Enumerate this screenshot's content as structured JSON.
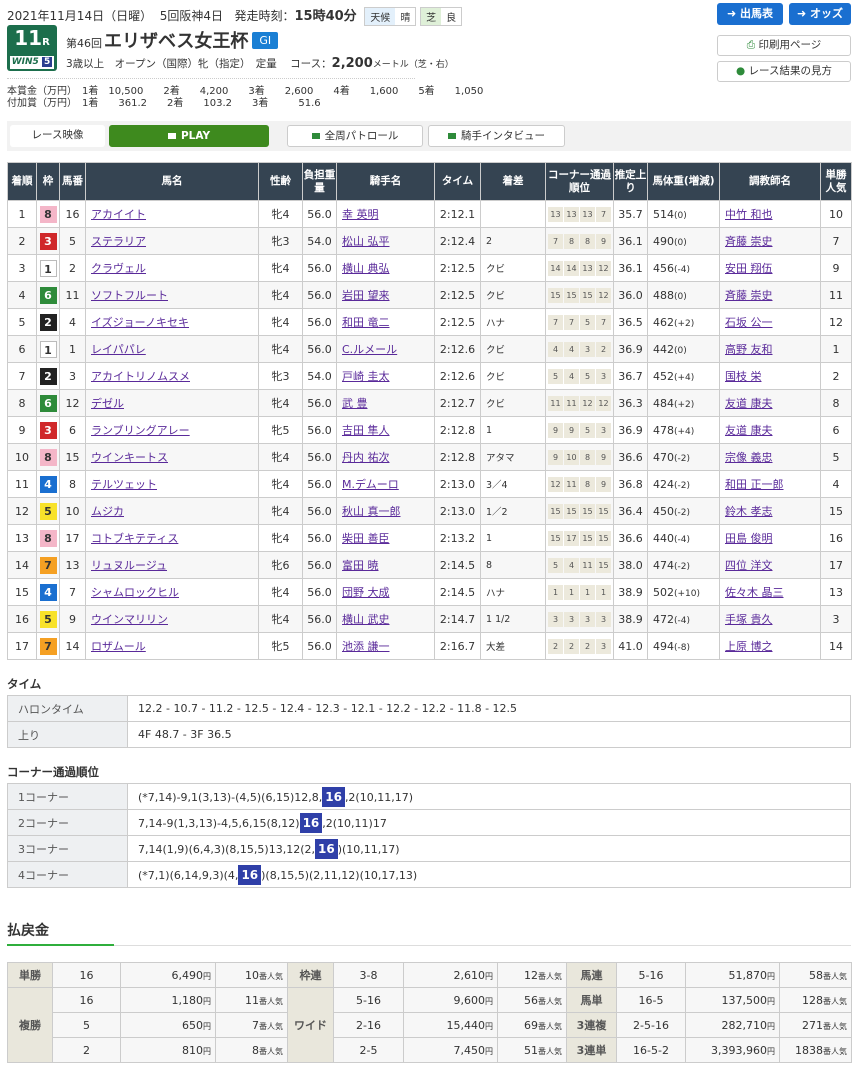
{
  "header": {
    "date": "2021年11月14日（日曜）",
    "meeting": "5回阪神4日",
    "post_label": "発走時刻：",
    "post_time": "15時40分",
    "weather_label": "天候",
    "weather": "晴",
    "track_label": "芝",
    "track_cond": "良",
    "race_no": "11",
    "race_suffix": "R",
    "win5": "WIN5",
    "win5_badge": "5",
    "edition": "第46回",
    "race_name": "エリザベス女王杯",
    "grade": "GI",
    "conditions": "3歳以上　オープン（国際）牝（指定）　定量",
    "course_label": "コース：",
    "distance": "2,200",
    "course_unit": "メートル（芝・右）"
  },
  "prize": {
    "main": "本賞金（万円）　1着　10,500　　2着　　4,200　　3着　　2,600　　4着　　1,600　　5着　　1,050",
    "added": "付加賞（万円）　1着　　361.2　　2着　　103.2　　3着　　　51.6"
  },
  "buttons": {
    "entries": "出馬表",
    "odds": "オッズ",
    "print": "印刷用ページ",
    "guide": "レース結果の見方"
  },
  "video": {
    "label": "レース映像",
    "play": "PLAY",
    "patrol": "全周パトロール",
    "interview": "騎手インタビュー"
  },
  "colors": {
    "frame": {
      "1": "#ffffff",
      "2": "#222222",
      "3": "#d0282a",
      "4": "#1a6fd0",
      "5": "#f8e22a",
      "6": "#2e8b3a",
      "7": "#f5a023",
      "8": "#f4b6c8"
    },
    "accent": "#2fae3c",
    "header_bg": "#354452"
  },
  "table": {
    "headers": [
      "着順",
      "枠",
      "馬番",
      "馬名",
      "性齢",
      "負担重量",
      "騎手名",
      "タイム",
      "着差",
      "コーナー通過順位",
      "推定上り",
      "馬体重(増減)",
      "調教師名",
      "単勝人気"
    ],
    "rows": [
      [
        "1",
        "8",
        "16",
        "アカイイト",
        "牝4",
        "56.0",
        "幸 英明",
        "2:12.1",
        "",
        [
          "13",
          "13",
          "13",
          "7"
        ],
        "35.7",
        "514",
        "(0)",
        "中竹 和也",
        "10"
      ],
      [
        "2",
        "3",
        "5",
        "ステラリア",
        "牝3",
        "54.0",
        "松山 弘平",
        "2:12.4",
        "2",
        [
          "7",
          "8",
          "8",
          "9"
        ],
        "36.1",
        "490",
        "(0)",
        "斉藤 崇史",
        "7"
      ],
      [
        "3",
        "1",
        "2",
        "クラヴェル",
        "牝4",
        "56.0",
        "横山 典弘",
        "2:12.5",
        "クビ",
        [
          "14",
          "14",
          "13",
          "12"
        ],
        "36.1",
        "456",
        "(-4)",
        "安田 翔伍",
        "9"
      ],
      [
        "4",
        "6",
        "11",
        "ソフトフルート",
        "牝4",
        "56.0",
        "岩田 望来",
        "2:12.5",
        "クビ",
        [
          "15",
          "15",
          "15",
          "12"
        ],
        "36.0",
        "488",
        "(0)",
        "斉藤 崇史",
        "11"
      ],
      [
        "5",
        "2",
        "4",
        "イズジョーノキセキ",
        "牝4",
        "56.0",
        "和田 竜二",
        "2:12.5",
        "ハナ",
        [
          "7",
          "7",
          "5",
          "7"
        ],
        "36.5",
        "462",
        "(+2)",
        "石坂 公一",
        "12"
      ],
      [
        "6",
        "1",
        "1",
        "レイパパレ",
        "牝4",
        "56.0",
        "C.ルメール",
        "2:12.6",
        "クビ",
        [
          "4",
          "4",
          "3",
          "2"
        ],
        "36.9",
        "442",
        "(0)",
        "高野 友和",
        "1"
      ],
      [
        "7",
        "2",
        "3",
        "アカイトリノムスメ",
        "牝3",
        "54.0",
        "戸崎 圭太",
        "2:12.6",
        "クビ",
        [
          "5",
          "4",
          "5",
          "3"
        ],
        "36.7",
        "452",
        "(+4)",
        "国枝 栄",
        "2"
      ],
      [
        "8",
        "6",
        "12",
        "デゼル",
        "牝4",
        "56.0",
        "武 豊",
        "2:12.7",
        "クビ",
        [
          "11",
          "11",
          "12",
          "12"
        ],
        "36.3",
        "484",
        "(+2)",
        "友道 康夫",
        "8"
      ],
      [
        "9",
        "3",
        "6",
        "ランブリングアレー",
        "牝5",
        "56.0",
        "吉田 隼人",
        "2:12.8",
        "1",
        [
          "9",
          "9",
          "5",
          "3"
        ],
        "36.9",
        "478",
        "(+4)",
        "友道 康夫",
        "6"
      ],
      [
        "10",
        "8",
        "15",
        "ウインキートス",
        "牝4",
        "56.0",
        "丹内 祐次",
        "2:12.8",
        "アタマ",
        [
          "9",
          "10",
          "8",
          "9"
        ],
        "36.6",
        "470",
        "(-2)",
        "宗像 義忠",
        "5"
      ],
      [
        "11",
        "4",
        "8",
        "テルツェット",
        "牝4",
        "56.0",
        "M.デムーロ",
        "2:13.0",
        "3／4",
        [
          "12",
          "11",
          "8",
          "9"
        ],
        "36.8",
        "424",
        "(-2)",
        "和田 正一郎",
        "4"
      ],
      [
        "12",
        "5",
        "10",
        "ムジカ",
        "牝4",
        "56.0",
        "秋山 真一郎",
        "2:13.0",
        "1／2",
        [
          "15",
          "15",
          "15",
          "15"
        ],
        "36.4",
        "450",
        "(-2)",
        "鈴木 孝志",
        "15"
      ],
      [
        "13",
        "8",
        "17",
        "コトブキテティス",
        "牝4",
        "56.0",
        "柴田 善臣",
        "2:13.2",
        "1",
        [
          "15",
          "17",
          "15",
          "15"
        ],
        "36.6",
        "440",
        "(-4)",
        "田島 俊明",
        "16"
      ],
      [
        "14",
        "7",
        "13",
        "リュヌルージュ",
        "牝6",
        "56.0",
        "富田 暁",
        "2:14.5",
        "8",
        [
          "5",
          "4",
          "11",
          "15"
        ],
        "38.0",
        "474",
        "(-2)",
        "四位 洋文",
        "17"
      ],
      [
        "15",
        "4",
        "7",
        "シャムロックヒル",
        "牝4",
        "56.0",
        "団野 大成",
        "2:14.5",
        "ハナ",
        [
          "1",
          "1",
          "1",
          "1"
        ],
        "38.9",
        "502",
        "(+10)",
        "佐々木 晶三",
        "13"
      ],
      [
        "16",
        "5",
        "9",
        "ウインマリリン",
        "牝4",
        "56.0",
        "横山 武史",
        "2:14.7",
        "1 1/2",
        [
          "3",
          "3",
          "3",
          "3"
        ],
        "38.9",
        "472",
        "(-4)",
        "手塚 貴久",
        "3"
      ],
      [
        "17",
        "7",
        "14",
        "ロザムール",
        "牝5",
        "56.0",
        "池添 謙一",
        "2:16.7",
        "大差",
        [
          "2",
          "2",
          "2",
          "3"
        ],
        "41.0",
        "494",
        "(-8)",
        "上原 博之",
        "14"
      ]
    ]
  },
  "times": {
    "title": "タイム",
    "rows": [
      {
        "label": "ハロンタイム",
        "value": "12.2 - 10.7 - 11.2 - 12.5 - 12.4 - 12.3 - 12.1 - 12.2 - 12.2 - 11.8 - 12.5"
      },
      {
        "label": "上り",
        "value": "4F 48.7 - 3F 36.5"
      }
    ]
  },
  "corners": {
    "title": "コーナー通過順位",
    "rows": [
      {
        "label": "1コーナー",
        "pre": "(*7,14)-9,1(3,13)-(4,5)(6,15)12,8,",
        "hl": "16",
        "post": ",2(10,11,17)"
      },
      {
        "label": "2コーナー",
        "pre": "7,14-9(1,3,13)-4,5,6,15(8,12)",
        "hl": "16",
        "post": ",2(10,11)17"
      },
      {
        "label": "3コーナー",
        "pre": "7,14(1,9)(6,4,3)(8,15,5)13,12(2,",
        "hl": "16",
        "post": ")(10,11,17)"
      },
      {
        "label": "4コーナー",
        "pre": "(*7,1)(6,14,9,3)(4,",
        "hl": "16",
        "post": ")(8,15,5)(2,11,12)(10,17,13)"
      }
    ]
  },
  "payout": {
    "title": "払戻金",
    "yen": "円",
    "pop": "番人気",
    "tansho": {
      "label": "単勝",
      "rows": [
        [
          "16",
          "6,490",
          "10"
        ]
      ]
    },
    "fukusho": {
      "label": "複勝",
      "rows": [
        [
          "16",
          "1,180",
          "11"
        ],
        [
          "5",
          "650",
          "7"
        ],
        [
          "2",
          "810",
          "8"
        ]
      ]
    },
    "wakuren": {
      "label": "枠連",
      "rows": [
        [
          "3-8",
          "2,610",
          "12"
        ]
      ]
    },
    "wide": {
      "label": "ワイド",
      "rows": [
        [
          "5-16",
          "9,600",
          "56"
        ],
        [
          "2-16",
          "15,440",
          "69"
        ],
        [
          "2-5",
          "7,450",
          "51"
        ]
      ]
    },
    "umaren": {
      "label": "馬連",
      "rows": [
        [
          "5-16",
          "51,870",
          "58"
        ]
      ]
    },
    "umatan": {
      "label": "馬単",
      "rows": [
        [
          "16-5",
          "137,500",
          "128"
        ]
      ]
    },
    "sanrenpuku": {
      "label": "3連複",
      "rows": [
        [
          "2-5-16",
          "282,710",
          "271"
        ]
      ]
    },
    "sanrentan": {
      "label": "3連単",
      "rows": [
        [
          "16-5-2",
          "3,393,960",
          "1838"
        ]
      ]
    }
  }
}
